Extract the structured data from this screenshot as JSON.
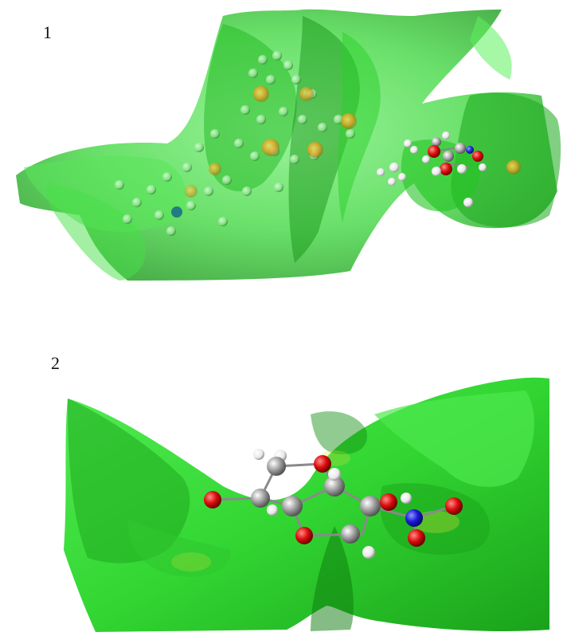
{
  "panels": [
    {
      "label": "1",
      "description_icon": "molecule-surface-large",
      "colors": {
        "surface": "#2fd42f",
        "surface_dark": "#149a14",
        "oxygen": "#e01010",
        "nitrogen": "#1d2fd8",
        "carbon": "#9a9a9a",
        "hydrogen": "#f2f2f2"
      }
    },
    {
      "label": "2",
      "description_icon": "molecule-surface-small",
      "colors": {
        "surface": "#3ee03e",
        "surface_dark": "#1aa21a",
        "oxygen": "#dd0d0d",
        "nitrogen": "#1a1ad8",
        "carbon": "#a0a0a0",
        "hydrogen": "#f4f4f4"
      }
    }
  ]
}
